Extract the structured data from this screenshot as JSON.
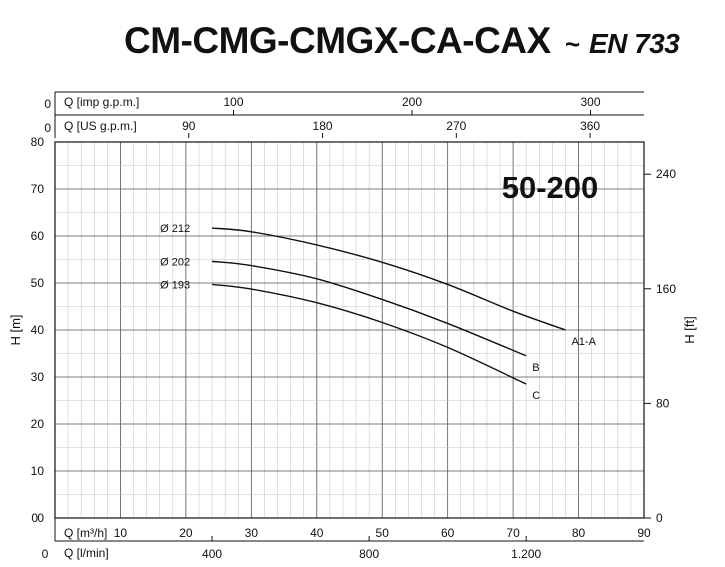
{
  "header": {
    "title": "CM-CMG-CMGX-CA-CAX",
    "tilde": "~",
    "standard": "EN 733"
  },
  "chart_data": {
    "type": "line",
    "model_label": "50-200",
    "xlabel": "Q [m³/h]",
    "ylabel": "H [m]",
    "xlim": [
      0,
      90
    ],
    "ylim": [
      0,
      80
    ],
    "x_ticks": [
      10,
      20,
      30,
      40,
      50,
      60,
      70,
      80,
      90
    ],
    "y_ticks": [
      0,
      10,
      20,
      30,
      40,
      50,
      60,
      70,
      80
    ],
    "grid": true,
    "secondary_axes": {
      "right": {
        "label": "H [ft]",
        "ticks": [
          0,
          80,
          160,
          240
        ],
        "factor": 3.2808
      },
      "bottom2": {
        "label": "Q [l/min]",
        "origin": "0",
        "ticks": [
          "400",
          "800",
          "1.200"
        ],
        "tick_values": [
          400,
          800,
          1200
        ],
        "factor": 16.6667
      },
      "top_us": {
        "label": "Q [US g.p.m.]",
        "origin": "0",
        "ticks": [
          "90",
          "180",
          "270",
          "360"
        ],
        "tick_values": [
          90,
          180,
          270,
          360
        ],
        "factor": 4.4029
      },
      "top_imp": {
        "label": "Q [imp g.p.m.]",
        "origin": "0",
        "ticks": [
          "100",
          "200",
          "300"
        ],
        "tick_values": [
          100,
          200,
          300
        ],
        "factor": 3.6662
      }
    },
    "series": [
      {
        "name": "A1-A",
        "diameter_label": "Ø 212",
        "x": [
          24,
          30,
          40,
          50,
          60,
          70,
          78
        ],
        "y": [
          61.7,
          60.9,
          58.1,
          54.4,
          49.7,
          44.0,
          40.0
        ]
      },
      {
        "name": "B",
        "diameter_label": "Ø 202",
        "x": [
          24,
          30,
          40,
          50,
          60,
          72
        ],
        "y": [
          54.6,
          53.7,
          50.9,
          46.5,
          41.4,
          34.5
        ]
      },
      {
        "name": "C",
        "diameter_label": "Ø 193",
        "x": [
          24,
          30,
          40,
          50,
          60,
          72
        ],
        "y": [
          49.7,
          48.7,
          45.8,
          41.6,
          36.3,
          28.5
        ]
      }
    ]
  }
}
